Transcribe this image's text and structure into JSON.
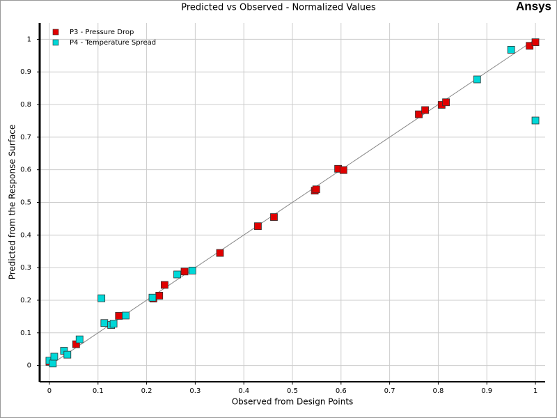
{
  "brand": "Ansys",
  "chart_data": {
    "type": "scatter",
    "title": "Predicted vs Observed - Normalized Values",
    "x_label": "Observed from Design Points",
    "y_label": "Predicted from the Response Surface",
    "xlim": [
      -0.02,
      1.02
    ],
    "ylim": [
      -0.05,
      1.05
    ],
    "xticks": [
      0,
      0.1,
      0.2,
      0.3,
      0.4,
      0.5,
      0.6,
      0.7,
      0.8,
      0.9,
      1
    ],
    "yticks": [
      0,
      0.1,
      0.2,
      0.3,
      0.4,
      0.5,
      0.6,
      0.7,
      0.8,
      0.9,
      1
    ],
    "grid": true,
    "legend": "upper left",
    "series": [
      {
        "name": "P3 - Pressure Drop",
        "color": "#e00000",
        "x": [
          0,
          0.055,
          0.143,
          0.214,
          0.226,
          0.237,
          0.278,
          0.351,
          0.429,
          0.462,
          0.546,
          0.549,
          0.594,
          0.605,
          0.76,
          0.773,
          0.807,
          0.816,
          0.988,
          1.0
        ],
        "values": [
          0.011,
          0.065,
          0.152,
          0.205,
          0.214,
          0.247,
          0.288,
          0.345,
          0.427,
          0.455,
          0.536,
          0.54,
          0.603,
          0.599,
          0.77,
          0.783,
          0.799,
          0.807,
          0.98,
          0.991
        ]
      },
      {
        "name": "P4 - Temperature Spread",
        "color": "#00d8d8",
        "x": [
          0,
          0.007,
          0.01,
          0.03,
          0.037,
          0.062,
          0.107,
          0.113,
          0.127,
          0.132,
          0.157,
          0.212,
          0.263,
          0.294,
          0.88,
          0.95,
          1.0
        ],
        "values": [
          0.015,
          0.006,
          0.027,
          0.045,
          0.033,
          0.08,
          0.206,
          0.13,
          0.124,
          0.128,
          0.153,
          0.208,
          0.279,
          0.291,
          0.877,
          0.968,
          0.751
        ]
      }
    ]
  }
}
